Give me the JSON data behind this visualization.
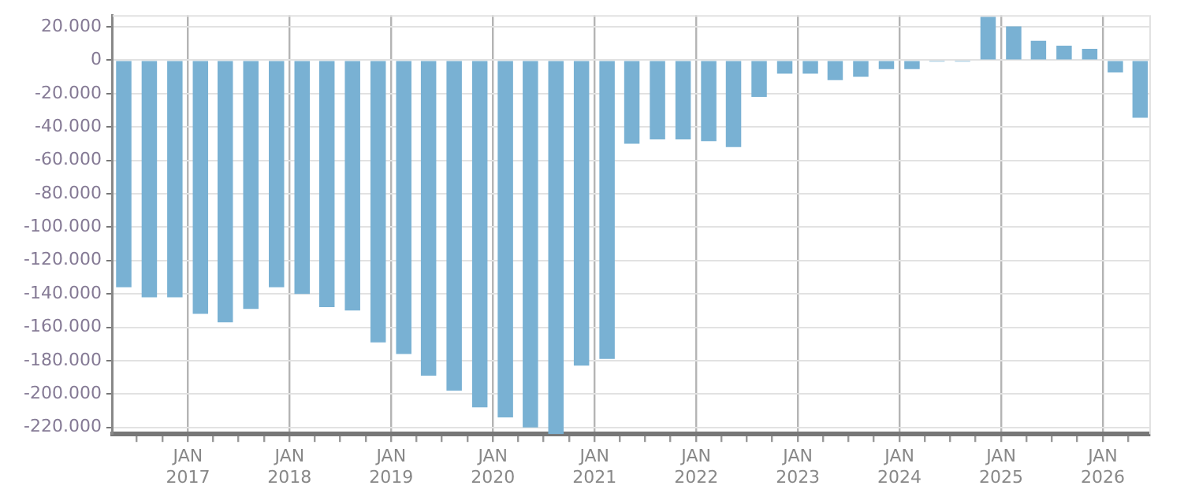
{
  "chart_data": {
    "type": "bar",
    "color": "#79b1d3",
    "x": [
      "2016-05-15",
      "2016-08-15",
      "2016-11-15",
      "2017-02-15",
      "2017-05-15",
      "2017-08-15",
      "2017-11-15",
      "2018-02-15",
      "2018-05-15",
      "2018-08-15",
      "2018-11-15",
      "2019-02-15",
      "2019-05-15",
      "2019-08-15",
      "2019-11-15",
      "2020-02-15",
      "2020-05-15",
      "2020-08-15",
      "2020-11-15",
      "2021-02-15",
      "2021-05-15",
      "2021-08-15",
      "2021-11-15",
      "2022-02-15",
      "2022-05-15",
      "2022-08-15",
      "2022-11-15",
      "2023-02-15",
      "2023-05-15",
      "2023-08-15",
      "2023-11-15",
      "2024-02-15",
      "2024-05-15",
      "2024-08-15",
      "2024-11-15",
      "2025-02-15",
      "2025-05-15",
      "2025-08-15",
      "2025-11-15",
      "2026-02-15",
      "2026-05-15"
    ],
    "values": [
      -136000,
      -142000,
      -142000,
      -152000,
      -157000,
      -149000,
      -136000,
      -140000,
      -148000,
      -150000,
      -169000,
      -176000,
      -189000,
      -198000,
      -208000,
      -214000,
      -220000,
      -224000,
      -183000,
      -179000,
      -50000,
      -47500,
      -47500,
      -48500,
      -52000,
      -22000,
      -8000,
      -8000,
      -12000,
      -10000,
      -5300,
      -5300,
      -900,
      -900,
      26000,
      20300,
      11600,
      8700,
      6800,
      -7400,
      -34500
    ],
    "xlim": [
      "2016-04-05",
      "2026-06-17"
    ],
    "xticks": [
      {
        "value": "2016-07-01",
        "label": null
      },
      {
        "value": "2016-10-01",
        "label": null
      },
      {
        "value": "2017-01-01",
        "label": "JAN 2017"
      },
      {
        "value": "2017-04-01",
        "label": null
      },
      {
        "value": "2017-07-01",
        "label": null
      },
      {
        "value": "2017-10-01",
        "label": null
      },
      {
        "value": "2018-01-01",
        "label": "JAN 2018"
      },
      {
        "value": "2018-04-01",
        "label": null
      },
      {
        "value": "2018-07-01",
        "label": null
      },
      {
        "value": "2018-10-01",
        "label": null
      },
      {
        "value": "2019-01-01",
        "label": "JAN 2019"
      },
      {
        "value": "2019-04-01",
        "label": null
      },
      {
        "value": "2019-07-01",
        "label": null
      },
      {
        "value": "2019-10-01",
        "label": null
      },
      {
        "value": "2020-01-01",
        "label": "JAN 2020"
      },
      {
        "value": "2020-04-01",
        "label": null
      },
      {
        "value": "2020-07-01",
        "label": null
      },
      {
        "value": "2020-10-01",
        "label": null
      },
      {
        "value": "2021-01-01",
        "label": "JAN 2021"
      },
      {
        "value": "2021-04-01",
        "label": null
      },
      {
        "value": "2021-07-01",
        "label": null
      },
      {
        "value": "2021-10-01",
        "label": null
      },
      {
        "value": "2022-01-01",
        "label": "JAN 2022"
      },
      {
        "value": "2022-04-01",
        "label": null
      },
      {
        "value": "2022-07-01",
        "label": null
      },
      {
        "value": "2022-10-01",
        "label": null
      },
      {
        "value": "2023-01-01",
        "label": "JAN 2023"
      },
      {
        "value": "2023-04-01",
        "label": null
      },
      {
        "value": "2023-07-01",
        "label": null
      },
      {
        "value": "2023-10-01",
        "label": null
      },
      {
        "value": "2024-01-01",
        "label": "JAN 2024"
      },
      {
        "value": "2024-04-01",
        "label": null
      },
      {
        "value": "2024-07-01",
        "label": null
      },
      {
        "value": "2024-10-01",
        "label": null
      },
      {
        "value": "2025-01-01",
        "label": "JAN 2025"
      },
      {
        "value": "2025-04-01",
        "label": null
      },
      {
        "value": "2025-07-01",
        "label": null
      },
      {
        "value": "2025-10-01",
        "label": null
      },
      {
        "value": "2026-01-01",
        "label": "JAN 2026"
      },
      {
        "value": "2026-04-01",
        "label": null
      }
    ],
    "ylim": [
      -224000,
      27000
    ],
    "yticks": [
      {
        "value": 20000,
        "label": "20.000"
      },
      0,
      {
        "value": -20000,
        "label": "-20.000"
      },
      {
        "value": -40000,
        "label": "-40.000"
      },
      {
        "value": -60000,
        "label": "-60.000"
      },
      {
        "value": -80000,
        "label": "-80.000"
      },
      {
        "value": -100000,
        "label": "-100.000"
      },
      {
        "value": -120000,
        "label": "-120.000"
      },
      {
        "value": -140000,
        "label": "-140.000"
      },
      {
        "value": -160000,
        "label": "-160.000"
      },
      {
        "value": -180000,
        "label": "-180.000"
      },
      {
        "value": -200000,
        "label": "-200.000"
      },
      {
        "value": -220000,
        "label": "-220.000"
      }
    ],
    "grid": true,
    "legend": false
  }
}
